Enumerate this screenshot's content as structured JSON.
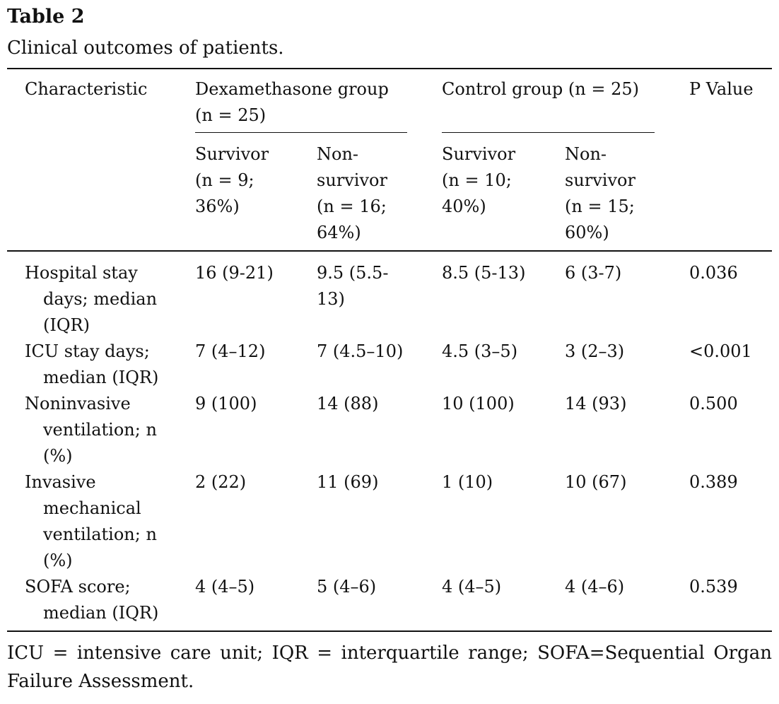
{
  "table": {
    "label": "Table 2",
    "caption": "Clinical outcomes of patients.",
    "header": {
      "characteristic": "Characteristic",
      "dexa_group": "Dexamethasone group\n(n = 25)",
      "control_group": "Control group (n = 25)",
      "p_value": "P Value",
      "dexa_survivor": "Survivor\n(n = 9;\n36%)",
      "dexa_nonsurvivor": "Non-\nsurvivor\n(n = 16;\n64%)",
      "control_survivor": "Survivor\n(n = 10;\n40%)",
      "control_nonsurvivor": "Non-\nsurvivor\n(n = 15;\n60%)"
    },
    "rows": [
      {
        "label_first": "Hospital stay",
        "label_rest": "days; median\n(IQR)",
        "dexa_survivor": "16 (9-21)",
        "dexa_nonsurvivor": "9.5 (5.5-\n13)",
        "control_survivor": "8.5 (5-13)",
        "control_nonsurvivor": "6 (3-7)",
        "p": "0.036"
      },
      {
        "label_first": "ICU stay days;",
        "label_rest": "median (IQR)",
        "dexa_survivor": "7 (4–12)",
        "dexa_nonsurvivor": "7 (4.5–10)",
        "control_survivor": "4.5 (3–5)",
        "control_nonsurvivor": "3 (2–3)",
        "p": "<0.001"
      },
      {
        "label_first": "Noninvasive",
        "label_rest": "ventilation; n\n(%)",
        "dexa_survivor": "9 (100)",
        "dexa_nonsurvivor": "14 (88)",
        "control_survivor": "10 (100)",
        "control_nonsurvivor": "14 (93)",
        "p": "0.500"
      },
      {
        "label_first": "Invasive",
        "label_rest": "mechanical\nventilation; n\n(%)",
        "dexa_survivor": "2 (22)",
        "dexa_nonsurvivor": "11 (69)",
        "control_survivor": "1 (10)",
        "control_nonsurvivor": "10 (67)",
        "p": "0.389"
      },
      {
        "label_first": "SOFA score;",
        "label_rest": "median (IQR)",
        "dexa_survivor": "4 (4–5)",
        "dexa_nonsurvivor": "5 (4–6)",
        "control_survivor": "4 (4–5)",
        "control_nonsurvivor": "4 (4–6)",
        "p": "0.539"
      }
    ],
    "footnote": "ICU = intensive care unit; IQR = interquartile range; SOFA=Sequential Organ Failure Assessment."
  }
}
